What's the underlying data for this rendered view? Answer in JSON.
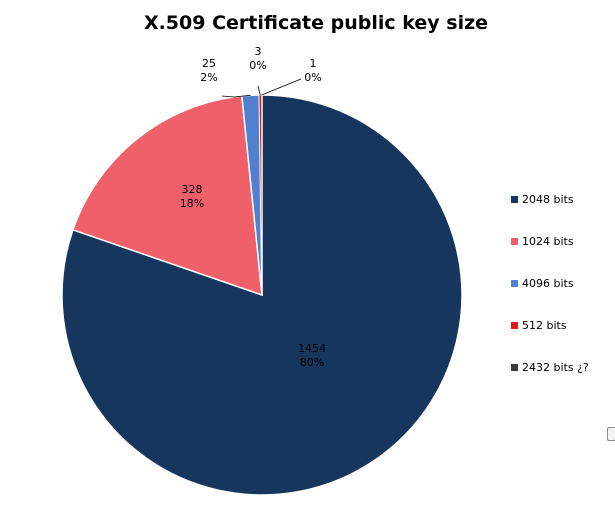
{
  "chart_data": {
    "type": "pie",
    "title": "X.509 Certificate public key size",
    "series": [
      {
        "name": "2048 bits",
        "value": 1454,
        "value_label": "1454",
        "pct_label": "80%",
        "color": "#17365d"
      },
      {
        "name": "1024 bits",
        "value": 328,
        "value_label": "328",
        "pct_label": "18%",
        "color": "#f0606a"
      },
      {
        "name": "4096 bits",
        "value": 25,
        "value_label": "25",
        "pct_label": "2%",
        "color": "#4f81d0"
      },
      {
        "name": "512 bits",
        "value": 3,
        "value_label": "3",
        "pct_label": "0%",
        "color": "#e11b1b"
      },
      {
        "name": "2432 bits ¿?",
        "value": 1,
        "value_label": "1",
        "pct_label": "0%",
        "color": "#3b3b3b"
      }
    ],
    "legend_position": "right"
  }
}
